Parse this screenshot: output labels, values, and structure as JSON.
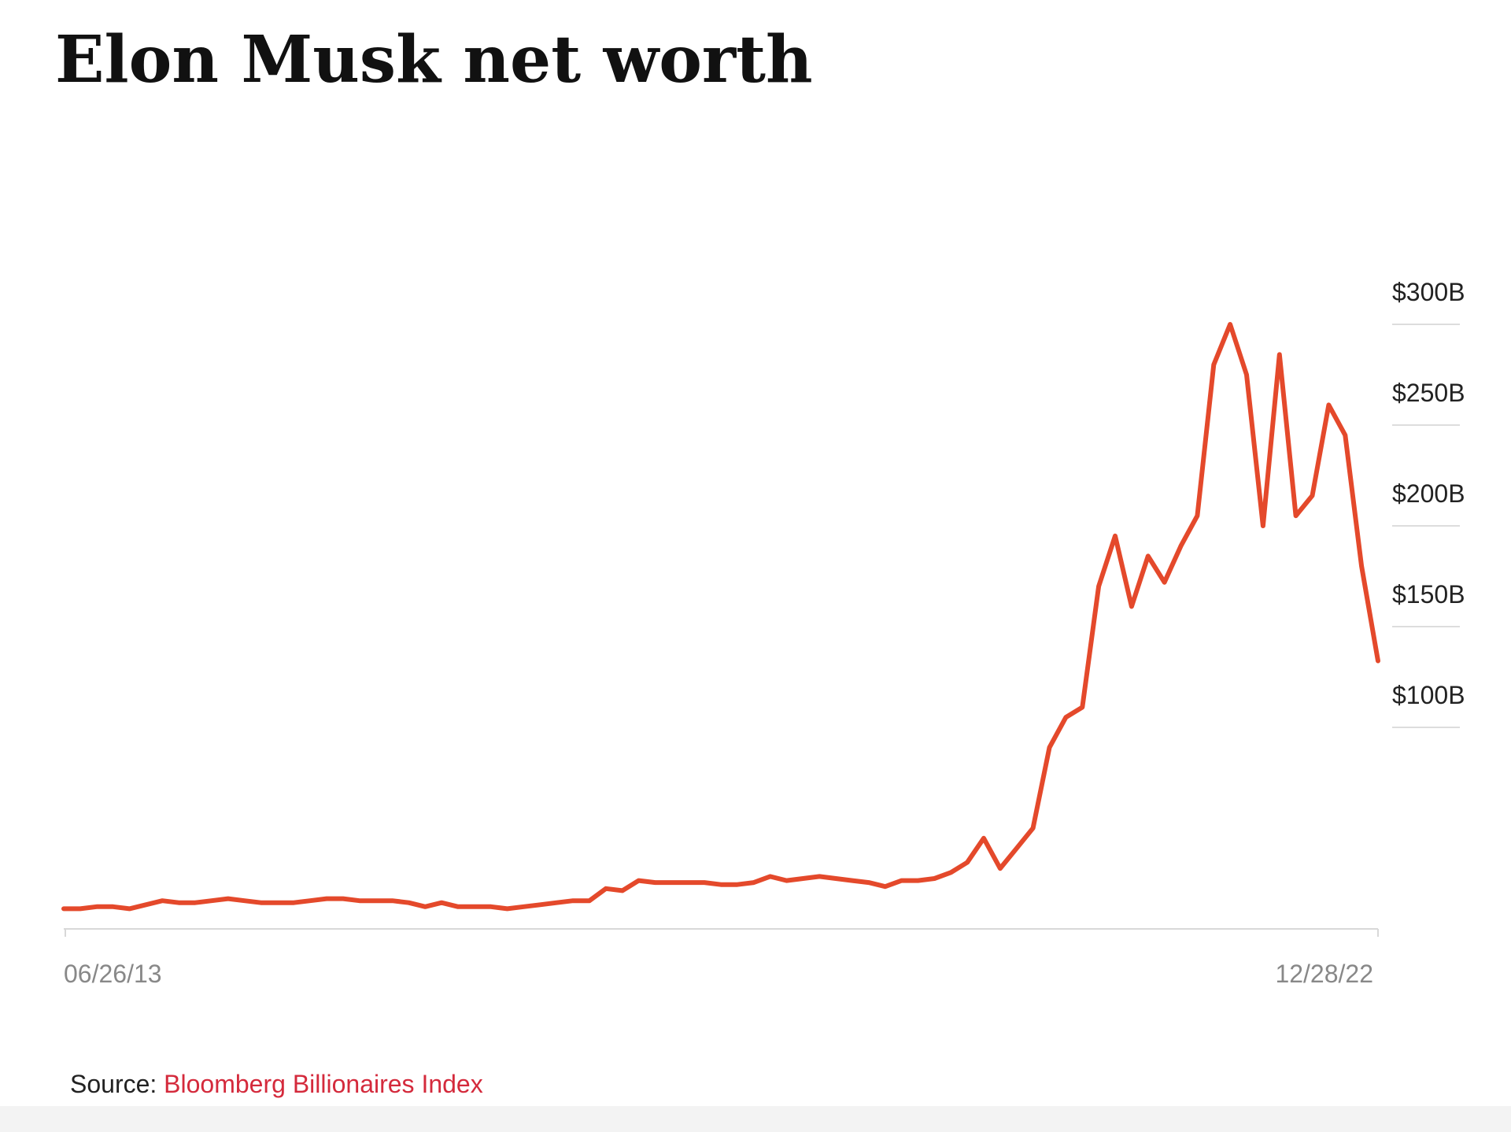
{
  "chart_data": {
    "type": "line",
    "title": "Elon Musk net worth",
    "source_label": "Source:",
    "source": "Bloomberg Billionaires Index",
    "categories": [
      "06/26/13",
      null,
      null,
      null,
      null,
      null,
      null,
      null,
      null,
      null,
      null,
      null,
      null,
      null,
      null,
      null,
      null,
      null,
      null,
      null,
      null,
      null,
      null,
      null,
      null,
      null,
      null,
      null,
      null,
      null,
      null,
      null,
      null,
      null,
      null,
      null,
      null,
      null,
      null,
      null,
      null,
      null,
      null,
      null,
      null,
      null,
      null,
      null,
      null,
      null,
      null,
      null,
      null,
      null,
      null,
      null,
      null,
      null,
      null,
      null,
      null,
      null,
      null,
      null,
      null,
      null,
      null,
      null,
      null,
      null,
      null,
      null,
      null,
      null,
      null,
      null,
      null,
      null,
      null,
      null,
      "12/28/22"
    ],
    "series": [
      {
        "name": "Net worth",
        "color": "#e4492b",
        "values": [
          10,
          10,
          11,
          11,
          10,
          12,
          14,
          13,
          13,
          14,
          15,
          14,
          13,
          13,
          13,
          14,
          15,
          15,
          14,
          14,
          14,
          13,
          11,
          13,
          11,
          11,
          11,
          10,
          11,
          12,
          13,
          14,
          14,
          20,
          19,
          24,
          23,
          23,
          23,
          23,
          22,
          22,
          23,
          26,
          24,
          25,
          26,
          25,
          24,
          23,
          21,
          24,
          24,
          25,
          28,
          33,
          45,
          30,
          40,
          50,
          90,
          105,
          110,
          170,
          195,
          160,
          185,
          172,
          190,
          205,
          280,
          300,
          275,
          200,
          285,
          205,
          215,
          260,
          245,
          180,
          133
        ]
      }
    ],
    "ylim": [
      0,
      350
    ],
    "yticks": [
      {
        "value": 100,
        "label": "$100B"
      },
      {
        "value": 150,
        "label": "$150B"
      },
      {
        "value": 200,
        "label": "$200B"
      },
      {
        "value": 250,
        "label": "$250B"
      },
      {
        "value": 300,
        "label": "$300B"
      }
    ],
    "grid": true
  }
}
